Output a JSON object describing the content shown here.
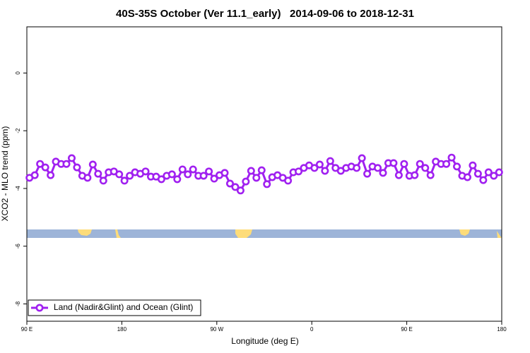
{
  "chart_data": {
    "type": "line",
    "title": "40S-35S October (Ver 11.1_early)   2014-09-06 to 2018-12-31",
    "x_label": "Longitude (deg E)",
    "y_label": "XCO2 - MLO trend (ppm)",
    "x": [
      92.5,
      97.5,
      102.5,
      107.5,
      112.5,
      117.5,
      122.5,
      127.5,
      132.5,
      137.5,
      142.5,
      147.5,
      152.5,
      157.5,
      162.5,
      167.5,
      172.5,
      177.5,
      182.5,
      187.5,
      192.5,
      197.5,
      202.5,
      207.5,
      212.5,
      217.5,
      222.5,
      227.5,
      232.5,
      237.5,
      242.5,
      247.5,
      252.5,
      257.5,
      262.5,
      267.5,
      272.5,
      277.5,
      282.5,
      287.5,
      292.5,
      297.5,
      302.5,
      307.5,
      312.5,
      317.5,
      322.5,
      327.5,
      332.5,
      337.5,
      342.5,
      347.5,
      352.5,
      357.5,
      362.5,
      367.5,
      372.5,
      377.5,
      382.5,
      387.5,
      392.5,
      397.5,
      402.5,
      407.5,
      412.5,
      417.5,
      422.5,
      427.5,
      432.5,
      437.5,
      442.5,
      447.5,
      452.5,
      457.5,
      462.5,
      467.5,
      472.5,
      477.5,
      482.5,
      487.5,
      492.5,
      497.5,
      502.5,
      507.5,
      512.5,
      517.5,
      522.5,
      527.5,
      532.5,
      537.5
    ],
    "series": [
      {
        "name": "Land (Nadir&Glint) and Ocean (Glint)",
        "color": "#a020f0",
        "values": [
          -3.63,
          -3.54,
          -3.15,
          -3.27,
          -3.54,
          -3.07,
          -3.15,
          -3.15,
          -2.95,
          -3.27,
          -3.56,
          -3.63,
          -3.17,
          -3.49,
          -3.73,
          -3.44,
          -3.41,
          -3.51,
          -3.73,
          -3.56,
          -3.44,
          -3.49,
          -3.41,
          -3.59,
          -3.59,
          -3.68,
          -3.56,
          -3.51,
          -3.68,
          -3.34,
          -3.51,
          -3.34,
          -3.56,
          -3.56,
          -3.41,
          -3.66,
          -3.54,
          -3.46,
          -3.83,
          -3.95,
          -4.07,
          -3.76,
          -3.39,
          -3.63,
          -3.37,
          -3.85,
          -3.61,
          -3.54,
          -3.63,
          -3.73,
          -3.44,
          -3.41,
          -3.29,
          -3.2,
          -3.29,
          -3.17,
          -3.39,
          -3.05,
          -3.29,
          -3.39,
          -3.29,
          -3.24,
          -3.29,
          -2.95,
          -3.49,
          -3.24,
          -3.29,
          -3.46,
          -3.12,
          -3.12,
          -3.54,
          -3.15,
          -3.56,
          -3.54,
          -3.15,
          -3.29,
          -3.54,
          -3.07,
          -3.15,
          -3.15,
          -2.93,
          -3.24,
          -3.56,
          -3.61,
          -3.2,
          -3.49,
          -3.71,
          -3.44,
          -3.56,
          -3.44
        ]
      }
    ],
    "xlim": [
      90,
      540
    ],
    "xticks": [
      {
        "value": 90,
        "label": "90 E"
      },
      180,
      {
        "value": 270,
        "label": "90 W"
      },
      {
        "value": 360,
        "label": "0"
      },
      {
        "value": 450,
        "label": "90 E"
      },
      {
        "value": 540,
        "label": "180"
      }
    ],
    "ylim": [
      -8.6,
      1.6
    ],
    "yticks": [
      0,
      -2,
      -4,
      -6,
      -8
    ],
    "legend": "bottom-left"
  }
}
